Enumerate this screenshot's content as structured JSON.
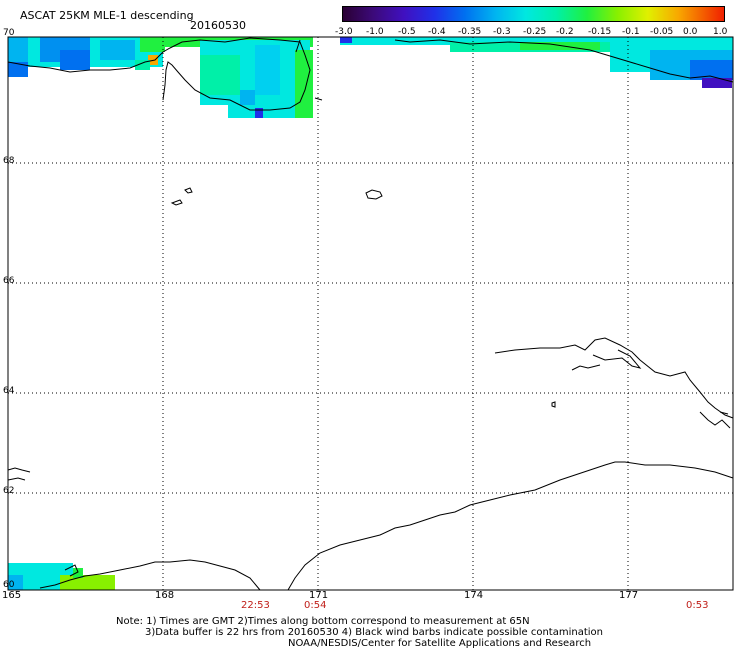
{
  "header": {
    "title": "ASCAT 25KM MLE-1 descending",
    "date": "20160530"
  },
  "colorbar": {
    "labels": [
      "-3.0",
      "-1.0",
      "-0.5",
      "-0.4",
      "-0.35",
      "-0.3",
      "-0.25",
      "-0.2",
      "-0.15",
      "-0.1",
      "-0.05",
      "0.0",
      "1.0"
    ],
    "colors": [
      "#2a0033",
      "#3c0a7a",
      "#4010c0",
      "#2030e8",
      "#0070f0",
      "#00b4f0",
      "#00e8e0",
      "#00f0a8",
      "#20f040",
      "#88f000",
      "#e0f000",
      "#f8a800",
      "#f02000"
    ]
  },
  "map": {
    "lat_labels": [
      "70",
      "68",
      "66",
      "64",
      "62",
      "60"
    ],
    "lon_labels": [
      "165",
      "168",
      "171",
      "174",
      "177"
    ],
    "pass_times": [
      "22:53",
      "0:54",
      "0:53"
    ]
  },
  "footer": {
    "note_line1": "Note: 1) Times are GMT 2)Times along bottom correspond to measurement at 65N",
    "note_line2": "3)Data buffer is 22 hrs from 20160530 4) Black wind barbs indicate possible contamination",
    "credit": "NOAA/NESDIS/Center for Satellite Applications and Research"
  }
}
